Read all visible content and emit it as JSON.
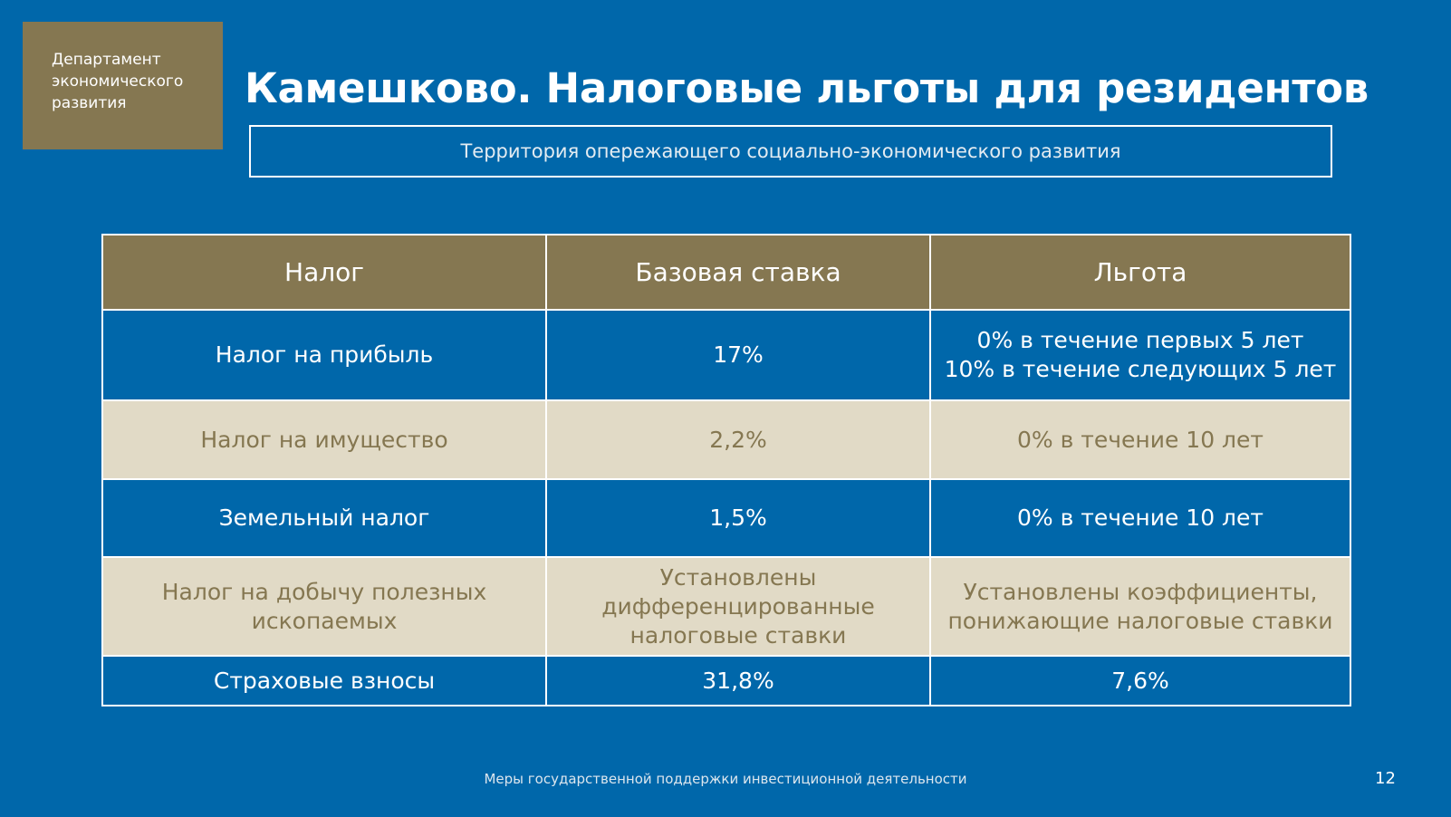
{
  "header": {
    "department_lines": [
      "Департамент",
      "экономического",
      "развития"
    ],
    "title": "Камешково. Налоговые льготы для резидентов",
    "subtitle": "Территория опережающего социально-экономического  развития"
  },
  "table": {
    "headers": [
      "Налог",
      "Базовая ставка",
      "Льгота"
    ],
    "rows": [
      {
        "tax": [
          "Налог на прибыль"
        ],
        "base": [
          "17%"
        ],
        "benefit": [
          "0% в течение первых 5 лет",
          "10% в течение следующих 5 лет"
        ]
      },
      {
        "tax": [
          "Налог на имущество"
        ],
        "base": [
          "2,2%"
        ],
        "benefit": [
          "0% в течение 10 лет"
        ]
      },
      {
        "tax": [
          "Земельный налог"
        ],
        "base": [
          "1,5%"
        ],
        "benefit": [
          "0% в течение 10 лет"
        ]
      },
      {
        "tax": [
          "Налог на добычу полезных",
          "ископаемых"
        ],
        "base": [
          "Установлены",
          "дифференцированные",
          "налоговые ставки"
        ],
        "benefit": [
          "Установлены коэффициенты,",
          "понижающие налоговые ставки"
        ]
      },
      {
        "tax": [
          "Страховые взносы"
        ],
        "base": [
          "31,8%"
        ],
        "benefit": [
          "7,6%"
        ]
      }
    ]
  },
  "footer": {
    "text": "Меры государственной поддержки инвестиционной деятельности",
    "page_number": "12"
  },
  "colors": {
    "background": "#0067aa",
    "accent_gold": "#857751",
    "row_beige": "#e1dac6",
    "text_white": "#ffffff"
  }
}
